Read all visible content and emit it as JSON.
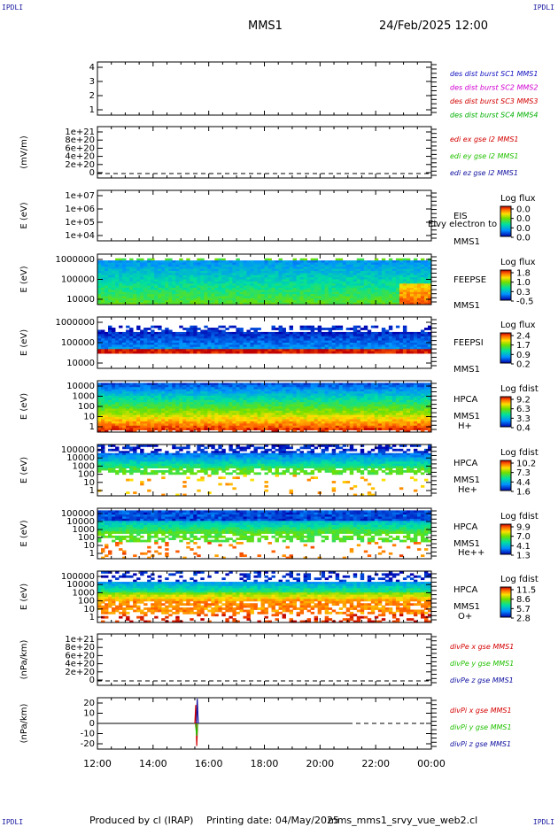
{
  "header": {
    "corner_label": "IPDLI",
    "spacecraft": "MMS1",
    "datetime": "24/Feb/2025 12:00"
  },
  "footer": {
    "producer": "Produced by cl (IRAP)",
    "printing_date": "Printing date: 04/May/2025",
    "filename": "mms_mms1_srvy_vue_web2.cl"
  },
  "colors": {
    "red": "#d40000",
    "green": "#22c000",
    "blue": "#1010a0",
    "magenta": "#d000d0",
    "darkgreen": "#00a000",
    "black": "#000000"
  },
  "chart_data": [
    {
      "id": "dist",
      "type": "line",
      "ylabel": "",
      "yticks": [
        "4",
        "3",
        "2",
        "1"
      ],
      "ylim": [
        0.5,
        4.5
      ],
      "legend": [
        {
          "text": "des dist burst SC1 MMS1",
          "color": "#1010c0"
        },
        {
          "text": "des dist burst SC2 MMS2",
          "color": "#d000d0"
        },
        {
          "text": "des dist burst SC3 MMS3",
          "color": "#d40000"
        },
        {
          "text": "des dist burst SC4 MMS4",
          "color": "#00b000"
        }
      ]
    },
    {
      "id": "edi",
      "type": "line",
      "ylabel": "(mV/m)",
      "yticks": [
        "1e+21",
        "8e+20",
        "6e+20",
        "4e+20",
        "2e+20",
        "0"
      ],
      "ylim": [
        0,
        1e+21
      ],
      "dashed_zero": true,
      "legend": [
        {
          "text": "edi ex gse l2 MMS1",
          "color": "#d40000"
        },
        {
          "text": "edi ey gse l2 MMS1",
          "color": "#22c000"
        },
        {
          "text": "edi ez gse l2 MMS1",
          "color": "#1010a0"
        }
      ]
    },
    {
      "id": "eis",
      "type": "heatmap",
      "ylabel": "E (eV)",
      "yticks": [
        "1e+07",
        "1e+06",
        "1e+05",
        "1e+04"
      ],
      "ylim": [
        10000.0,
        10000000.0
      ],
      "log": true,
      "side_labels": [
        "EIS",
        "MMS1"
      ],
      "overlay_text": "Eivy electron to",
      "colorbar": {
        "title": "Log flux",
        "ticks": [
          "0.0",
          "0.0",
          "0.0",
          "0.0"
        ]
      }
    },
    {
      "id": "feepse",
      "type": "heatmap",
      "ylabel": "E (eV)",
      "yticks": [
        "1000000",
        "100000",
        "10000"
      ],
      "ylim": [
        10000.0,
        1000000.0
      ],
      "log": true,
      "side_labels": [
        "FEEPSE",
        "MMS1"
      ],
      "colorbar": {
        "title": "Log flux",
        "ticks": [
          "1.8",
          "1.0",
          "0.3",
          "-0.5"
        ]
      }
    },
    {
      "id": "feepsi",
      "type": "heatmap",
      "ylabel": "E (eV)",
      "yticks": [
        "1000000",
        "100000",
        "10000"
      ],
      "ylim": [
        10000.0,
        1000000.0
      ],
      "log": true,
      "side_labels": [
        "FEEPSI",
        "MMS1"
      ],
      "colorbar": {
        "title": "Log flux",
        "ticks": [
          "2.4",
          "1.7",
          "0.9",
          "0.2"
        ]
      }
    },
    {
      "id": "hpca_h",
      "type": "heatmap",
      "ylabel": "E (eV)",
      "yticks": [
        "10000",
        "1000",
        "100",
        "10",
        "1"
      ],
      "ylim": [
        1,
        30000
      ],
      "log": true,
      "side_labels": [
        "HPCA",
        "MMS1",
        "H+"
      ],
      "colorbar": {
        "title": "Log fdist",
        "ticks": [
          "9.2",
          "6.3",
          "3.3",
          "0.4"
        ]
      }
    },
    {
      "id": "hpca_he",
      "type": "heatmap",
      "ylabel": "E (eV)",
      "yticks": [
        "100000",
        "10000",
        "1000",
        "100",
        "10",
        "1"
      ],
      "ylim": [
        1,
        100000
      ],
      "log": true,
      "side_labels": [
        "HPCA",
        "MMS1",
        "He+"
      ],
      "colorbar": {
        "title": "Log fdist",
        "ticks": [
          "10.2",
          "7.3",
          "4.4",
          "1.6"
        ]
      }
    },
    {
      "id": "hpca_he2",
      "type": "heatmap",
      "ylabel": "E (eV)",
      "yticks": [
        "100000",
        "10000",
        "1000",
        "100",
        "10",
        "1"
      ],
      "ylim": [
        1,
        100000
      ],
      "log": true,
      "side_labels": [
        "HPCA",
        "MMS1",
        "He++"
      ],
      "colorbar": {
        "title": "Log fdist",
        "ticks": [
          "9.9",
          "7.0",
          "4.1",
          "1.3"
        ]
      }
    },
    {
      "id": "hpca_o",
      "type": "heatmap",
      "ylabel": "E (eV)",
      "yticks": [
        "100000",
        "10000",
        "1000",
        "100",
        "10",
        "1"
      ],
      "ylim": [
        1,
        100000
      ],
      "log": true,
      "side_labels": [
        "HPCA",
        "MMS1",
        "O+"
      ],
      "colorbar": {
        "title": "Log fdist",
        "ticks": [
          "11.5",
          "8.6",
          "5.7",
          "2.8"
        ]
      }
    },
    {
      "id": "divpe",
      "type": "line",
      "ylabel": "(nPa/km)",
      "yticks": [
        "1e+21",
        "8e+20",
        "6e+20",
        "4e+20",
        "2e+20",
        "0"
      ],
      "ylim": [
        0,
        1e+21
      ],
      "dashed_zero": true,
      "legend": [
        {
          "text": "divPe x gse MMS1",
          "color": "#d40000"
        },
        {
          "text": "divPe y gse MMS1",
          "color": "#22c000"
        },
        {
          "text": "divPe z gse MMS1",
          "color": "#1010a0"
        }
      ]
    },
    {
      "id": "divpi",
      "type": "line",
      "ylabel": "(nPa/km)",
      "yticks": [
        "20",
        "10",
        "0",
        "-10",
        "-20"
      ],
      "ylim": [
        -25,
        25
      ],
      "dashed_zero": true,
      "series": [
        {
          "name": "divPi x gse MMS1",
          "x": [
            "15:30",
            "15:32",
            "15:34",
            "15:36"
          ],
          "values": [
            0,
            18,
            -22,
            0
          ]
        },
        {
          "name": "divPi y gse MMS1",
          "x": [
            "15:30",
            "15:33",
            "15:35"
          ],
          "values": [
            0,
            -12,
            0
          ]
        },
        {
          "name": "divPi z gse MMS1",
          "x": [
            "15:31",
            "15:33",
            "15:35"
          ],
          "values": [
            0,
            24,
            0
          ]
        }
      ],
      "legend": [
        {
          "text": "divPi x gse MMS1",
          "color": "#d40000"
        },
        {
          "text": "divPi y gse MMS1",
          "color": "#22c000"
        },
        {
          "text": "divPi z gse MMS1",
          "color": "#1010a0"
        }
      ]
    }
  ],
  "xaxis": {
    "ticks": [
      "12:00",
      "14:00",
      "16:00",
      "18:00",
      "20:00",
      "22:00",
      "00:00"
    ]
  }
}
